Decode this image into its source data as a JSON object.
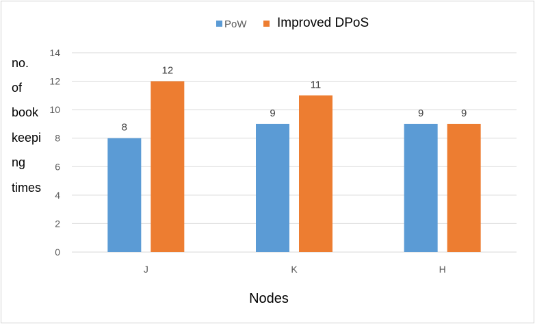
{
  "chart_data": {
    "type": "bar",
    "categories": [
      "J",
      "K",
      "H"
    ],
    "series": [
      {
        "name": "PoW",
        "values": [
          8,
          9,
          9
        ],
        "color": "#5b9bd5"
      },
      {
        "name": "Improved DPoS",
        "values": [
          12,
          11,
          9
        ],
        "color": "#ed7d31"
      }
    ],
    "title": "",
    "xlabel": "Nodes",
    "ylabel_lines": [
      "no.",
      "of",
      "book",
      "keepi",
      "ng",
      "times"
    ],
    "ylim": [
      0,
      14
    ],
    "yticks": [
      0,
      2,
      4,
      6,
      8,
      10,
      12,
      14
    ],
    "grid": true,
    "legend": "top"
  }
}
